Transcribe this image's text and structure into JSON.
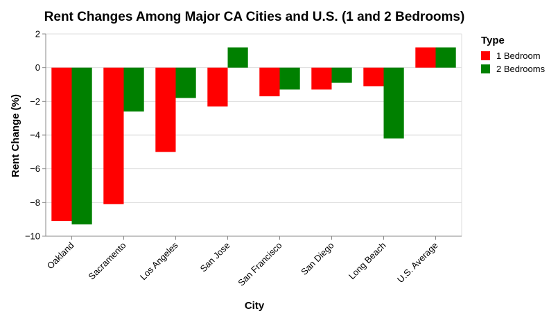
{
  "chart_data": {
    "type": "bar",
    "title": "Rent Changes Among Major CA Cities and U.S. (1 and 2 Bedrooms)",
    "xlabel": "City",
    "ylabel": "Rent Change (%)",
    "ylim": [
      -10,
      2
    ],
    "yticks": [
      2,
      0,
      -2,
      -4,
      -6,
      -8,
      -10
    ],
    "ytick_labels": [
      "2",
      "0",
      "−2",
      "−4",
      "−6",
      "−8",
      "−10"
    ],
    "grid": true,
    "categories": [
      "Oakland",
      "Sacramento",
      "Los Angeles",
      "San Jose",
      "San Francisco",
      "San Diego",
      "Long Beach",
      "U.S. Average"
    ],
    "legend": {
      "title": "Type",
      "position": "right"
    },
    "series": [
      {
        "name": "1 Bedroom",
        "color": "#ff0000",
        "values": [
          -9.1,
          -8.1,
          -5.0,
          -2.3,
          -1.7,
          -1.3,
          -1.1,
          1.2
        ]
      },
      {
        "name": "2 Bedrooms",
        "color": "#008000",
        "values": [
          -9.3,
          -2.6,
          -1.8,
          1.2,
          -1.3,
          -0.9,
          -4.2,
          1.2
        ]
      }
    ]
  }
}
